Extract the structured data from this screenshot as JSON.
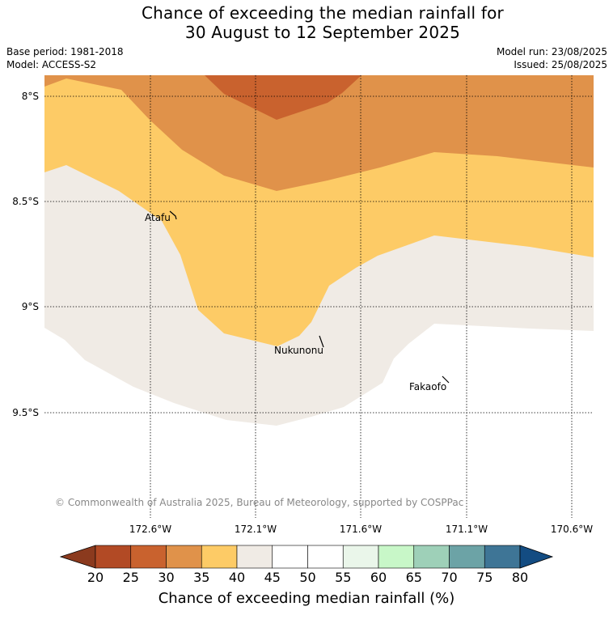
{
  "title": {
    "line1": "Chance of exceeding the median rainfall for",
    "line2": "30 August to 12 September 2025"
  },
  "meta": {
    "base_period": "Base period: 1981-2018",
    "model": "Model: ACCESS-S2",
    "model_run": "Model run: 23/08/2025",
    "issued": "Issued: 25/08/2025"
  },
  "map": {
    "lat_labels": [
      "8°S",
      "8.5°S",
      "9°S",
      "9.5°S"
    ],
    "lon_labels": [
      "172.6°W",
      "172.1°W",
      "171.6°W",
      "171.1°W",
      "170.6°W"
    ],
    "places": [
      "Atafu",
      "Nukunonu",
      "Fakaofo"
    ],
    "copyright": "© Commonwealth of Australia 2025, Bureau of Meteorology, supported by COSPPac"
  },
  "legend": {
    "title": "Chance of exceeding median rainfall (%)",
    "ticks": [
      "20",
      "25",
      "30",
      "35",
      "40",
      "45",
      "50",
      "55",
      "60",
      "65",
      "70",
      "75",
      "80"
    ],
    "colors": [
      "#8b3a1e",
      "#b24a25",
      "#c9622e",
      "#e0924a",
      "#fdcb66",
      "#f0ebe5",
      "#ffffff",
      "#ffffff",
      "#eaf6ea",
      "#c8f7c8",
      "#9ed0b8",
      "#6ca3a6",
      "#3e7596",
      "#134c82"
    ]
  }
}
